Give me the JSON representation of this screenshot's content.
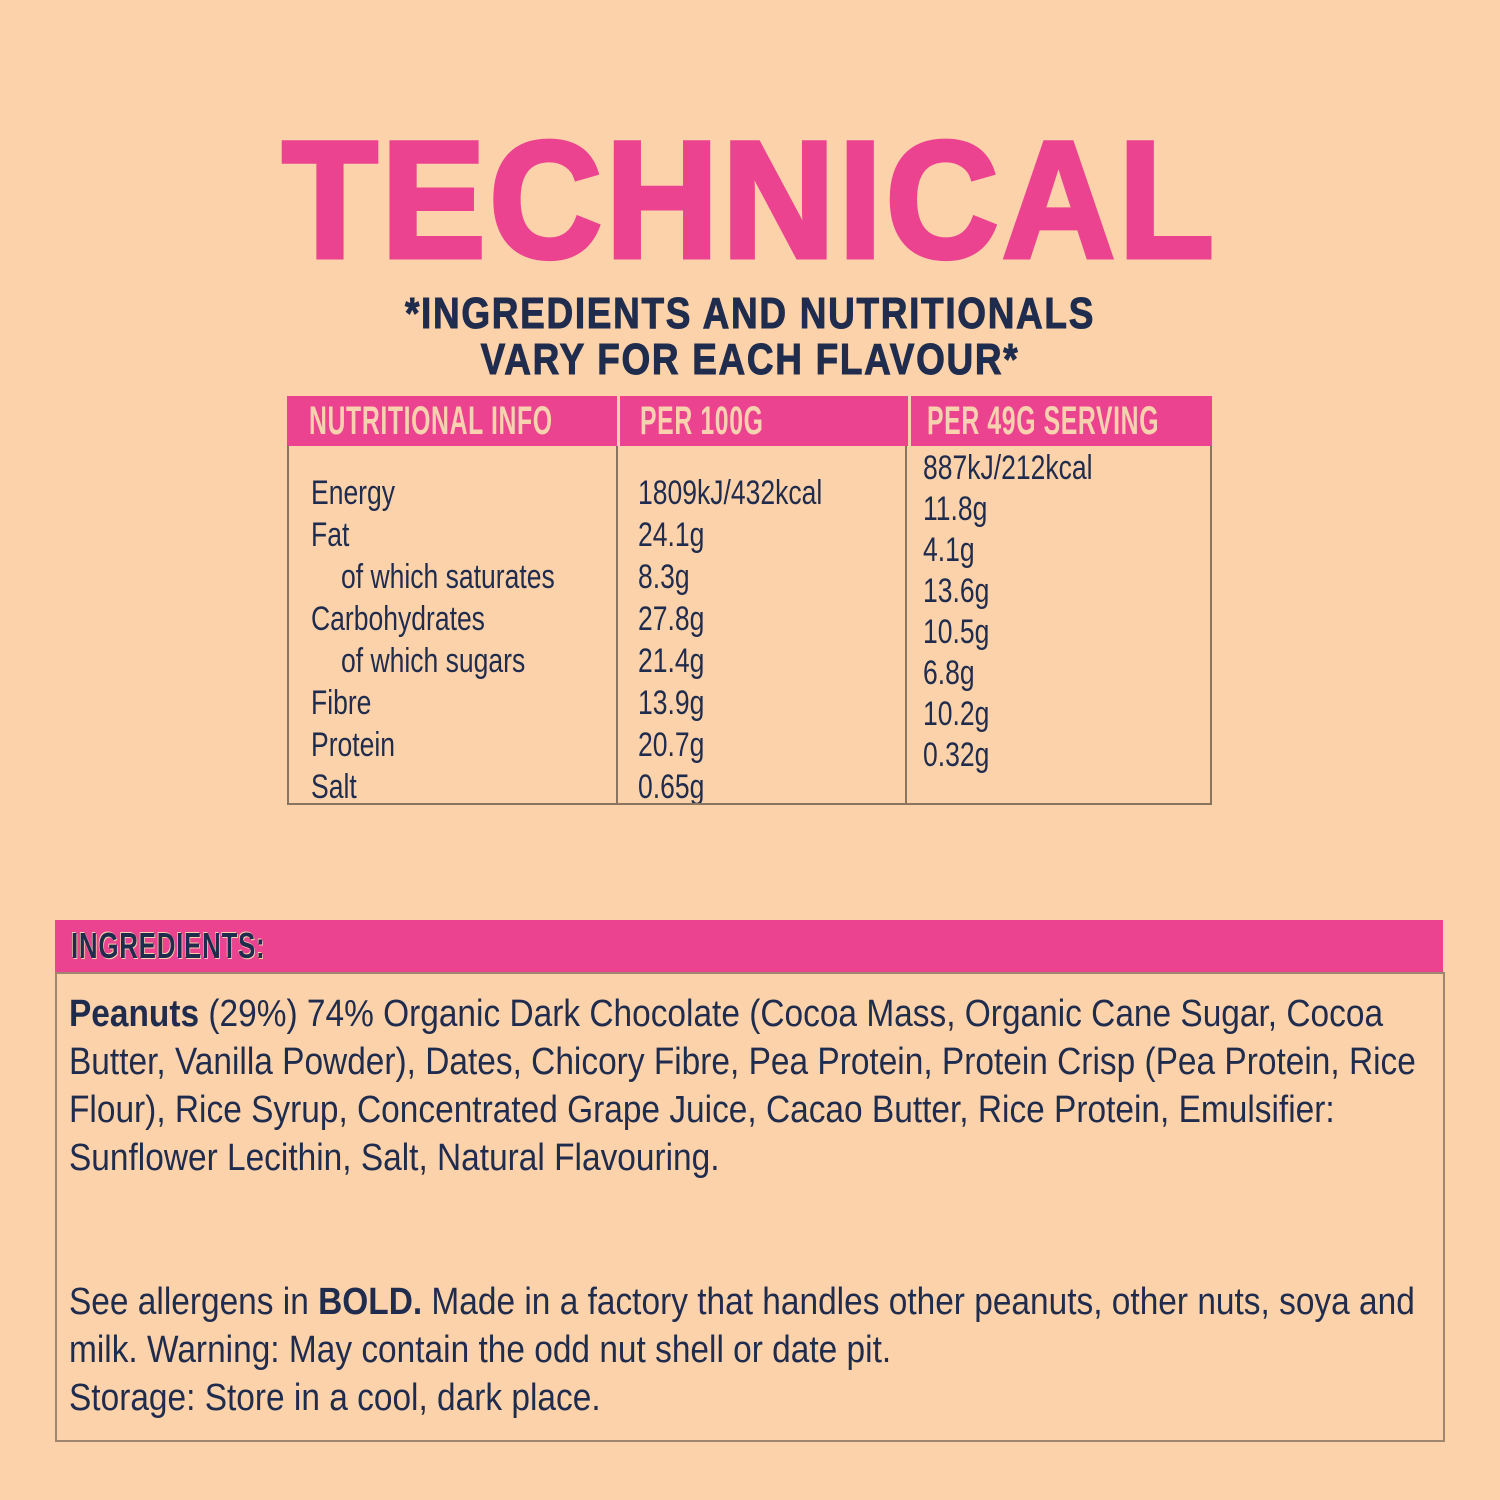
{
  "page": {
    "title": "TECHNICAL",
    "subtitle_line1": "*INGREDIENTS AND NUTRITIONALS",
    "subtitle_line2": "VARY FOR EACH FLAVOUR*"
  },
  "colors": {
    "accent_pink": "#EC4390",
    "text_navy": "#1F2C4E",
    "background_peach": "#FCD2AA",
    "header_text_peach": "#F8D2AE"
  },
  "nutrition_table": {
    "headers": {
      "col1": "NUTRITIONAL INFO",
      "col2": "PER 100G",
      "col3": "PER 49G SERVING"
    },
    "rows": [
      {
        "label": "Energy",
        "per_100g": "1809kJ/432kcal",
        "per_serving": "887kJ/212kcal"
      },
      {
        "label": "Fat",
        "per_100g": "24.1g",
        "per_serving": "11.8g"
      },
      {
        "label": "of which saturates",
        "per_100g": "8.3g",
        "per_serving": "4.1g"
      },
      {
        "label": "Carbohydrates",
        "per_100g": "27.8g",
        "per_serving": "13.6g"
      },
      {
        "label": "of which sugars",
        "per_100g": "21.4g",
        "per_serving": "10.5g"
      },
      {
        "label": "Fibre",
        "per_100g": "13.9g",
        "per_serving": "6.8g"
      },
      {
        "label": "Protein",
        "per_100g": "20.7g",
        "per_serving": "10.2g"
      },
      {
        "label": "Salt",
        "per_100g": "0.65g",
        "per_serving": "0.32g"
      }
    ]
  },
  "ingredients": {
    "banner_label": "INGREDIENTS:",
    "lead_bold": "Peanuts",
    "body": " (29%) 74% Organic Dark Chocolate (Cocoa Mass, Organic Cane Sugar, Cocoa Butter, Vanilla Powder), Dates, Chicory Fibre, Pea Protein, Protein Crisp (Pea Protein, Rice Flour), Rice Syrup, Concentrated Grape Juice, Cacao Butter, Rice Protein, Emulsifier: Sunflower Lecithin, Salt, Natural Flavouring."
  },
  "allergens": {
    "prefix": "See allergens in ",
    "bold": "BOLD.",
    "suffix": " Made in a factory that handles other peanuts, other nuts, soya and milk. Warning: May contain the odd nut shell or date pit.",
    "storage": "Storage: Store in a cool, dark place."
  }
}
